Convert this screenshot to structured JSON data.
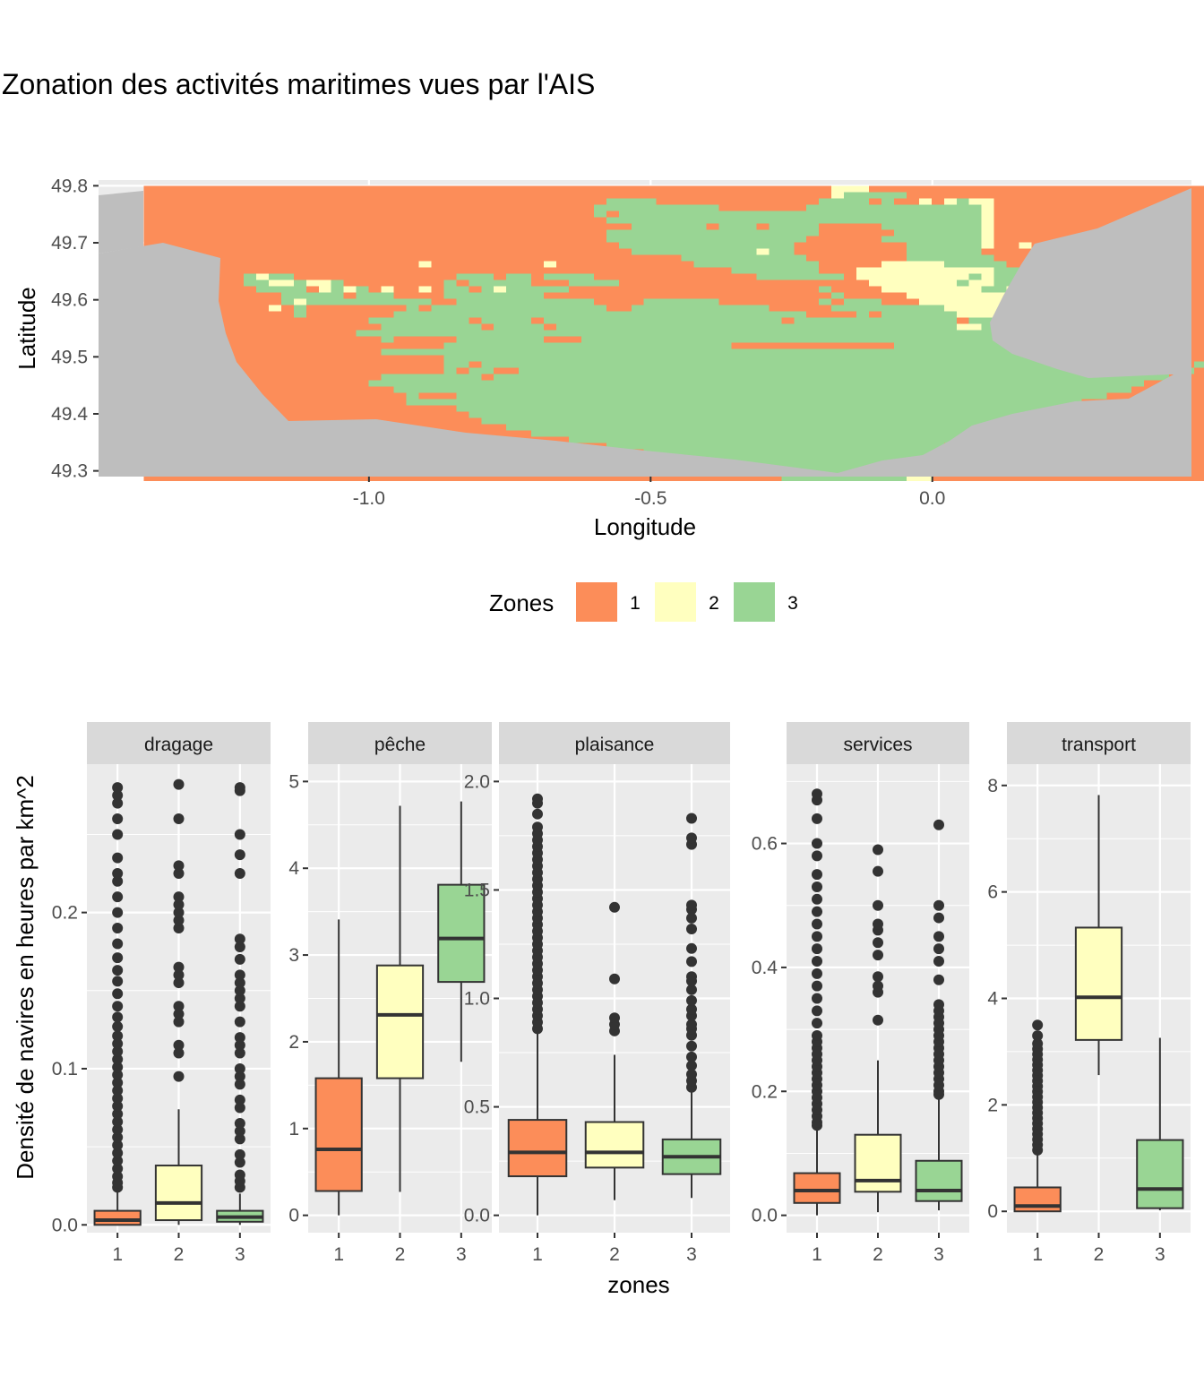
{
  "title": "Zonation des activités maritimes vues par l'AIS",
  "colors": {
    "panel_bg": "#ebebeb",
    "grid": "#ffffff",
    "land": "#bebebe",
    "strip_bg": "#d9d9d9",
    "outlier": "#333333",
    "zone_1": "#fc8d59",
    "zone_2": "#ffffbf",
    "zone_3": "#99d594"
  },
  "chart_data": [
    {
      "type": "heatmap",
      "xlabel": "Longitude",
      "ylabel": "Latitude",
      "xlim": [
        -1.48,
        0.46
      ],
      "ylim": [
        49.29,
        49.81
      ],
      "x_ticks": [
        -1.0,
        -0.5,
        0.0
      ],
      "x_tick_labels": [
        "-1.0",
        "-0.5",
        "0.0"
      ],
      "y_ticks": [
        49.3,
        49.4,
        49.5,
        49.6,
        49.7,
        49.8
      ],
      "y_tick_labels": [
        "49.3",
        "49.4",
        "49.5",
        "49.6",
        "49.7",
        "49.8"
      ],
      "legend": {
        "title": "Zones",
        "position": "bottom",
        "entries": [
          {
            "label": "1",
            "color": "#fc8d59"
          },
          {
            "label": "2",
            "color": "#ffffbf"
          },
          {
            "label": "3",
            "color": "#99d594"
          }
        ]
      },
      "grid": {
        "lon_min": -1.4,
        "lat_max": 49.8,
        "cell_lon": 0.0222,
        "cell_lat": 0.011,
        "rows": [
          "111111111111111111111111111111111111111111111111111111122211111111111111111111111111111111111111111",
          "111111111111111111111111111111111111111111111111111111123333311111111111111111111111111111111111131",
          "111111111111111111111111111111111111133331111111111111333313112123221111111111111111111111111111311",
          "111111111111111111111111111111111111333333333311111113333333333333321111111111111111111111111111111",
          "111111111111111111111111111111111111313333333333333333333333333333321111111111111111111111111111111",
          "111111111111111111111111111111111111133333333333333333333333333333321111111111111111111111111111111",
          "111111111111111111111111111111111111111333333133313333111113333333321111111111333111111111111111111",
          "111111111111111111111111111111111111133333333333333333111111333333321111111111111111111111111111111",
          "111111111111111111111111111111111111133333333333333331111113333333321111111111111111111111111111111",
          "111111111111111111111111111111111111113333333333333311111111133333321121111111111111111111111111111",
          "111111111111111111111111111111111111111333333333323311111111133333311111111111111111111111111111111",
          "111111111111111111111111111111111111111111133333333331111111133333331111111111111111111111111111111",
          "111111111111111111111121111111112111111111113333333333111112222233333111111111111111111111111111111",
          "111111111111111111111111111111111111111111111113333333111222222222223332311111113111111111111111111",
          "111111113233111111111111133313313333111111111111133333331222222222323333333333331111111111111111111",
          "111111113322322311111111313333311133331111111111111111111122222223223333333333311111111111111111111",
          "111111111333312323121121331323333311111111111111111111311112222222233233333333311111111111111111111",
          "111111111113333313331111333333331111111111111111111111131111122222222223333333311111111111111111111",
          "111111111113233333333331133333333333111133333311111111313331112222222222222333311111111111111111111",
          "111111111121311111111313333333333333311333333333331111133333333322222222222223331111111111111111111",
          "111111111111311111113333333333333333333333333333333331111313333332222222222231313111111111111111111",
          "111111111111111111333333331333313333333333333333333133333333333331333333233333333311111111111111111",
          "111111111111111111133333333133331333333333333333333333333333333332233313333333331111111111111111111",
          "111111111111111113333333333333333333333333333333333333333333333333333333333333223111111111111111111",
          "111111111111111111131111133333331113333333333333333333333333333333333313333333333311111111111111111",
          "111111111111111111111111333333333333333333333331111111111111333333333331233332311111111111111111111",
          "111111111111111111133333333333333333333333333333333333333333333333333333333233331111111111111111111",
          "111111111111111111111111333333333333333333333333333333333333333333333333333333333331111111111111111",
          "111111111111111111111111331333333333333333333333333333333333333333333333333133333331311111111111111",
          "111111111111111111111111313311333333333333333333333333333333333333333333333331113333133311111111111",
          "111111111111111111133333333133333333333333333333333333333333333333333333333333333311111111111111111",
          "111111111111111111333333333333333333333333333333333333333333333333333333333333331111111111111111111",
          "111111111111111111113333333333333333333333333333333333333333333333333333333333311111111111111111111",
          "111111111111111111111311133333333333333333333333333333333333333333333333333331111111111111111111111",
          "111111111111111111111333333333333333333333333333333333333333333333333333333111111111111111111111111",
          "111111111111111111111111133333333333333333333333333333333333333333333333331111111111111111111111111",
          "111111111111111111111111113333333333333333333333333333333333333333333333111111111111111111111111111",
          "111111111111111111111111111333333333333333333333333333333333333333333311111111111111111111111111111",
          "111111111111111111111111111113333333333333333333333333333333333333331111111111111111111111111111111",
          "111111111111111111111111111111133333333333333333333333333333333333311111111111111111111111111111111",
          "111111111111111111111111111111111133333333333333333333333333333331111111111111111111111111111111111",
          "111111111111111111111111111111111111133333333333333333333333333311111111111111111111111111111111111",
          "111111111111111111111111111111111111111133333333333333333333333311111111111111111111111111111111111",
          "111111111111111111111111111111111111111111133333333333333333333311111111111111111111111111111111111",
          "111111111111111111111111111111111111111111111133333333333333333111111111111111111111111111111111111",
          "111111111111111111111111111111111111111111111111133333333333332111111111111111111111111111111111111",
          "111111111111111111111111111111111111111111111111111333333333322111111111111111111111111111111111111"
        ]
      }
    },
    {
      "type": "boxplot",
      "xlabel": "zones",
      "ylabel": "Densité de navires en heures par km^2",
      "categories": [
        "1",
        "2",
        "3"
      ],
      "panels": [
        {
          "name": "dragage",
          "ylim": [
            -0.005,
            0.295
          ],
          "y_ticks": [
            0.0,
            0.1,
            0.2
          ],
          "y_tick_labels": [
            "0.0",
            "0.1",
            "0.2"
          ],
          "boxes": [
            {
              "zone": "1",
              "min": 0.0,
              "q1": 0.0,
              "median": 0.003,
              "q3": 0.009,
              "max": 0.022,
              "outliers": [
                0.024,
                0.027,
                0.031,
                0.036,
                0.041,
                0.046,
                0.051,
                0.056,
                0.061,
                0.066,
                0.071,
                0.076,
                0.081,
                0.086,
                0.091,
                0.096,
                0.101,
                0.106,
                0.111,
                0.116,
                0.121,
                0.127,
                0.133,
                0.14,
                0.148,
                0.156,
                0.163,
                0.171,
                0.18,
                0.19,
                0.2,
                0.21,
                0.22,
                0.225,
                0.235,
                0.25,
                0.26,
                0.27,
                0.275,
                0.28
              ]
            },
            {
              "zone": "2",
              "min": 0.0,
              "q1": 0.003,
              "median": 0.014,
              "q3": 0.038,
              "max": 0.074,
              "outliers": [
                0.095,
                0.11,
                0.115,
                0.13,
                0.135,
                0.14,
                0.155,
                0.16,
                0.165,
                0.19,
                0.195,
                0.2,
                0.205,
                0.21,
                0.225,
                0.23,
                0.26,
                0.282
              ]
            },
            {
              "zone": "3",
              "min": 0.0,
              "q1": 0.002,
              "median": 0.005,
              "q3": 0.009,
              "max": 0.02,
              "outliers": [
                0.024,
                0.028,
                0.032,
                0.04,
                0.045,
                0.055,
                0.06,
                0.065,
                0.075,
                0.08,
                0.09,
                0.095,
                0.1,
                0.11,
                0.115,
                0.12,
                0.13,
                0.14,
                0.145,
                0.15,
                0.155,
                0.16,
                0.17,
                0.178,
                0.183,
                0.225,
                0.237,
                0.25,
                0.278,
                0.28
              ]
            }
          ]
        },
        {
          "name": "pêche",
          "ylim": [
            -0.2,
            5.2
          ],
          "y_ticks": [
            0,
            1,
            2,
            3,
            4,
            5
          ],
          "y_tick_labels": [
            "0",
            "1",
            "2",
            "3",
            "4",
            "5"
          ],
          "boxes": [
            {
              "zone": "1",
              "min": 0.0,
              "q1": 0.28,
              "median": 0.76,
              "q3": 1.58,
              "max": 3.41,
              "outliers": []
            },
            {
              "zone": "2",
              "min": 0.27,
              "q1": 1.58,
              "median": 2.31,
              "q3": 2.88,
              "max": 4.72,
              "outliers": []
            },
            {
              "zone": "3",
              "min": 1.77,
              "q1": 2.69,
              "median": 3.19,
              "q3": 3.81,
              "max": 4.77,
              "outliers": []
            }
          ]
        },
        {
          "name": "plaisance",
          "ylim": [
            -0.08,
            2.08
          ],
          "y_ticks": [
            0.0,
            0.5,
            1.0,
            1.5,
            2.0
          ],
          "y_tick_labels": [
            "0.0",
            "0.5",
            "1.0",
            "1.5",
            "2.0"
          ],
          "boxes": [
            {
              "zone": "1",
              "min": 0.0,
              "q1": 0.18,
              "median": 0.29,
              "q3": 0.44,
              "max": 0.84,
              "outliers": [
                0.86,
                0.89,
                0.92,
                0.95,
                0.98,
                1.01,
                1.04,
                1.07,
                1.1,
                1.13,
                1.16,
                1.19,
                1.22,
                1.25,
                1.28,
                1.31,
                1.34,
                1.37,
                1.4,
                1.43,
                1.46,
                1.49,
                1.52,
                1.55,
                1.58,
                1.61,
                1.64,
                1.67,
                1.7,
                1.73,
                1.76,
                1.79,
                1.85,
                1.9,
                1.92
              ]
            },
            {
              "zone": "2",
              "min": 0.07,
              "q1": 0.22,
              "median": 0.29,
              "q3": 0.43,
              "max": 0.74,
              "outliers": [
                0.85,
                0.88,
                0.91,
                1.09,
                1.42
              ]
            },
            {
              "zone": "3",
              "min": 0.08,
              "q1": 0.19,
              "median": 0.27,
              "q3": 0.35,
              "max": 0.57,
              "outliers": [
                0.59,
                0.62,
                0.65,
                0.69,
                0.73,
                0.78,
                0.83,
                0.86,
                0.88,
                0.92,
                0.95,
                0.99,
                1.04,
                1.08,
                1.1,
                1.17,
                1.23,
                1.32,
                1.37,
                1.41,
                1.43,
                1.71,
                1.74,
                1.83
              ]
            }
          ]
        },
        {
          "name": "services",
          "ylim": [
            -0.028,
            0.728
          ],
          "y_ticks": [
            0.0,
            0.2,
            0.4,
            0.6
          ],
          "y_tick_labels": [
            "0.0",
            "0.2",
            "0.4",
            "0.6"
          ],
          "boxes": [
            {
              "zone": "1",
              "min": 0.0,
              "q1": 0.02,
              "median": 0.04,
              "q3": 0.068,
              "max": 0.14,
              "outliers": [
                0.145,
                0.15,
                0.16,
                0.17,
                0.18,
                0.19,
                0.2,
                0.21,
                0.22,
                0.23,
                0.24,
                0.25,
                0.26,
                0.27,
                0.28,
                0.29,
                0.31,
                0.33,
                0.35,
                0.37,
                0.39,
                0.41,
                0.43,
                0.45,
                0.47,
                0.49,
                0.51,
                0.53,
                0.55,
                0.58,
                0.6,
                0.64,
                0.67,
                0.68
              ]
            },
            {
              "zone": "2",
              "min": 0.005,
              "q1": 0.038,
              "median": 0.056,
              "q3": 0.13,
              "max": 0.25,
              "outliers": [
                0.315,
                0.36,
                0.37,
                0.385,
                0.42,
                0.44,
                0.46,
                0.47,
                0.5,
                0.555,
                0.59
              ]
            },
            {
              "zone": "3",
              "min": 0.008,
              "q1": 0.023,
              "median": 0.04,
              "q3": 0.088,
              "max": 0.19,
              "outliers": [
                0.195,
                0.2,
                0.21,
                0.22,
                0.23,
                0.24,
                0.25,
                0.26,
                0.27,
                0.28,
                0.29,
                0.3,
                0.31,
                0.32,
                0.33,
                0.34,
                0.38,
                0.41,
                0.43,
                0.45,
                0.48,
                0.5,
                0.63
              ]
            }
          ]
        },
        {
          "name": "transport",
          "ylim": [
            -0.4,
            8.4
          ],
          "y_ticks": [
            0,
            2,
            4,
            6,
            8
          ],
          "y_tick_labels": [
            "0",
            "2",
            "4",
            "6",
            "8"
          ],
          "boxes": [
            {
              "zone": "1",
              "min": 0.0,
              "q1": 0.0,
              "median": 0.1,
              "q3": 0.45,
              "max": 1.1,
              "outliers": [
                1.15,
                1.25,
                1.35,
                1.45,
                1.55,
                1.65,
                1.75,
                1.85,
                1.95,
                2.05,
                2.15,
                2.25,
                2.35,
                2.45,
                2.55,
                2.65,
                2.75,
                2.85,
                2.95,
                3.05,
                3.15,
                3.3,
                3.5
              ]
            },
            {
              "zone": "2",
              "min": 2.56,
              "q1": 3.22,
              "median": 4.02,
              "q3": 5.33,
              "max": 7.82,
              "outliers": []
            },
            {
              "zone": "3",
              "min": 0.02,
              "q1": 0.06,
              "median": 0.42,
              "q3": 1.34,
              "max": 3.26,
              "outliers": []
            }
          ]
        }
      ]
    }
  ]
}
